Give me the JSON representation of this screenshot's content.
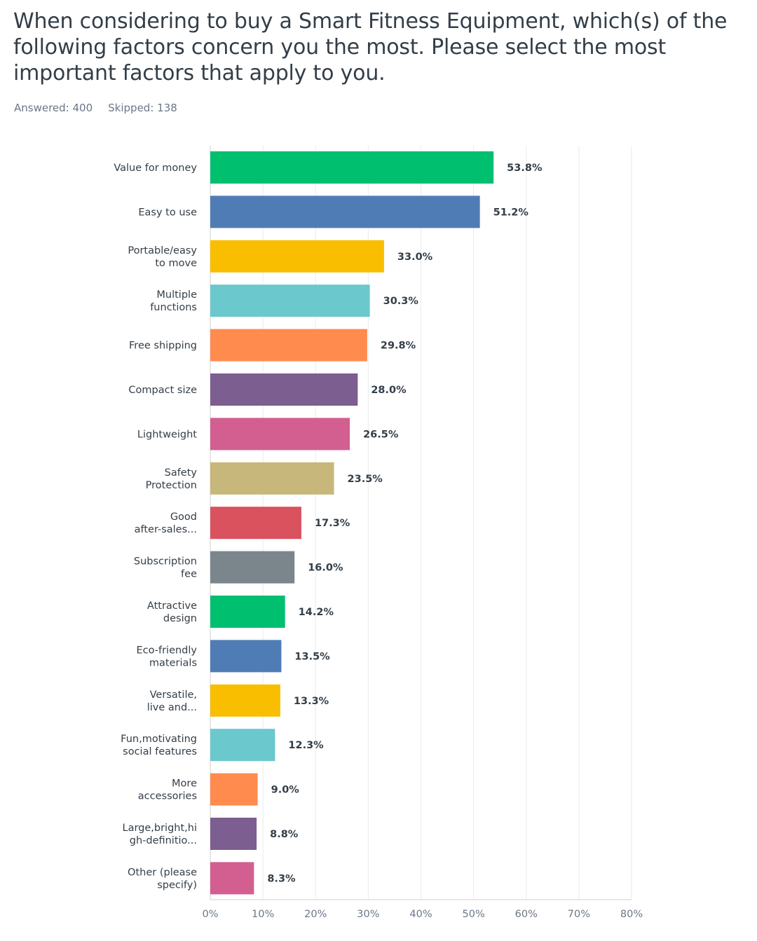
{
  "question": {
    "title": "When considering to buy a Smart Fitness Equipment, which(s) of the following factors concern you the most. Please select the most important factors that apply to you."
  },
  "stats": {
    "answered_label": "Answered:",
    "answered_value": "400",
    "skipped_label": "Skipped:",
    "skipped_value": "138"
  },
  "chart_data": {
    "type": "bar",
    "orientation": "horizontal",
    "categories": [
      [
        "Value for money"
      ],
      [
        "Easy to use"
      ],
      [
        "Portable/easy",
        "to move"
      ],
      [
        "Multiple",
        "functions"
      ],
      [
        "Free shipping"
      ],
      [
        "Compact size"
      ],
      [
        "Lightweight"
      ],
      [
        "Safety",
        "Protection"
      ],
      [
        "Good",
        "after-sales..."
      ],
      [
        "Subscription",
        "fee"
      ],
      [
        "Attractive",
        "design"
      ],
      [
        "Eco-friendly",
        "materials"
      ],
      [
        "Versatile,",
        "live and..."
      ],
      [
        "Fun,motivating",
        "social features"
      ],
      [
        "More",
        "accessories"
      ],
      [
        "Large,bright,hi",
        "gh-definitio..."
      ],
      [
        "Other (please",
        "specify)"
      ]
    ],
    "values": [
      53.8,
      51.2,
      33.0,
      30.3,
      29.8,
      28.0,
      26.5,
      23.5,
      17.3,
      16.0,
      14.2,
      13.5,
      13.3,
      12.3,
      9.0,
      8.8,
      8.3
    ],
    "value_labels": [
      "53.8%",
      "51.2%",
      "33.0%",
      "30.3%",
      "29.8%",
      "28.0%",
      "26.5%",
      "23.5%",
      "17.3%",
      "16.0%",
      "14.2%",
      "13.5%",
      "13.3%",
      "12.3%",
      "9.0%",
      "8.8%",
      "8.3%"
    ],
    "colors": [
      "#00bf6f",
      "#507cb6",
      "#f9be00",
      "#6bc8cd",
      "#ff8b4f",
      "#7d5e90",
      "#d25f90",
      "#c8b77a",
      "#d9525e",
      "#7b868c",
      "#00bf6f",
      "#507cb6",
      "#f9be00",
      "#6bc8cd",
      "#ff8b4f",
      "#7d5e90",
      "#d25f90"
    ],
    "xlim": [
      0,
      80
    ],
    "ticks": [
      0,
      10,
      20,
      30,
      40,
      50,
      60,
      70,
      80
    ],
    "tick_labels": [
      "0%",
      "10%",
      "20%",
      "30%",
      "40%",
      "50%",
      "60%",
      "70%",
      "80%"
    ],
    "grid": true,
    "gridline_color": "#e9ebed",
    "axis_color": "#d0d2d3"
  }
}
